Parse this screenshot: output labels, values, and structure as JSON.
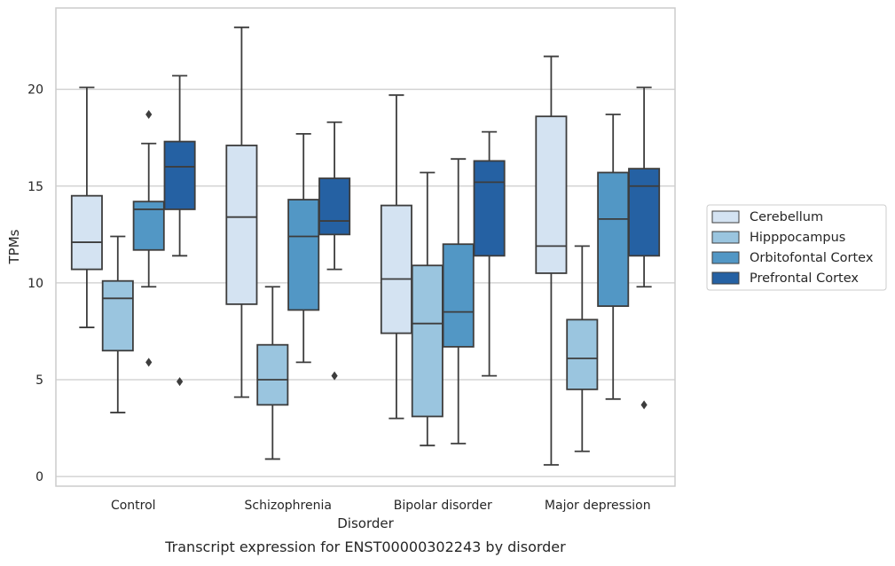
{
  "chart_data": {
    "type": "box",
    "xlabel": "Disorder",
    "ylabel": "TPMs",
    "caption": "Transcript expression for ENST00000302243 by disorder",
    "ylim": [
      -0.5,
      24.2
    ],
    "yticks": [
      0,
      5,
      10,
      15,
      20
    ],
    "grid": true,
    "legend_position": "right",
    "categories": [
      "Control",
      "Schizophrenia",
      "Bipolar disorder",
      "Major depression"
    ],
    "series": [
      {
        "name": "Cerebellum",
        "color": "#d4e3f2",
        "boxes": [
          {
            "whisker_low": 7.7,
            "q1": 10.7,
            "median": 12.1,
            "q3": 14.5,
            "whisker_high": 20.1,
            "outliers": []
          },
          {
            "whisker_low": 4.1,
            "q1": 8.9,
            "median": 13.4,
            "q3": 17.1,
            "whisker_high": 23.2,
            "outliers": []
          },
          {
            "whisker_low": 3.0,
            "q1": 7.4,
            "median": 10.2,
            "q3": 14.0,
            "whisker_high": 19.7,
            "outliers": []
          },
          {
            "whisker_low": 0.6,
            "q1": 10.5,
            "median": 11.9,
            "q3": 18.6,
            "whisker_high": 21.7,
            "outliers": []
          }
        ]
      },
      {
        "name": "Hipppocampus",
        "color": "#9ac5df",
        "boxes": [
          {
            "whisker_low": 3.3,
            "q1": 6.5,
            "median": 9.2,
            "q3": 10.1,
            "whisker_high": 12.4,
            "outliers": []
          },
          {
            "whisker_low": 0.9,
            "q1": 3.7,
            "median": 5.0,
            "q3": 6.8,
            "whisker_high": 9.8,
            "outliers": []
          },
          {
            "whisker_low": 1.6,
            "q1": 3.1,
            "median": 7.9,
            "q3": 10.9,
            "whisker_high": 15.7,
            "outliers": []
          },
          {
            "whisker_low": 1.3,
            "q1": 4.5,
            "median": 6.1,
            "q3": 8.1,
            "whisker_high": 11.9,
            "outliers": []
          }
        ]
      },
      {
        "name": "Orbitofontal Cortex",
        "color": "#5297c5",
        "boxes": [
          {
            "whisker_low": 9.8,
            "q1": 11.7,
            "median": 13.8,
            "q3": 14.2,
            "whisker_high": 17.2,
            "outliers": [
              18.7,
              5.9
            ]
          },
          {
            "whisker_low": 5.9,
            "q1": 8.6,
            "median": 12.4,
            "q3": 14.3,
            "whisker_high": 17.7,
            "outliers": []
          },
          {
            "whisker_low": 1.7,
            "q1": 6.7,
            "median": 8.5,
            "q3": 12.0,
            "whisker_high": 16.4,
            "outliers": []
          },
          {
            "whisker_low": 4.0,
            "q1": 8.8,
            "median": 13.3,
            "q3": 15.7,
            "whisker_high": 18.7,
            "outliers": []
          }
        ]
      },
      {
        "name": "Prefrontal Cortex",
        "color": "#2561a3",
        "boxes": [
          {
            "whisker_low": 11.4,
            "q1": 13.8,
            "median": 16.0,
            "q3": 17.3,
            "whisker_high": 20.7,
            "outliers": [
              4.9
            ]
          },
          {
            "whisker_low": 10.7,
            "q1": 12.5,
            "median": 13.2,
            "q3": 15.4,
            "whisker_high": 18.3,
            "outliers": [
              5.2
            ]
          },
          {
            "whisker_low": 5.2,
            "q1": 11.4,
            "median": 15.2,
            "q3": 16.3,
            "whisker_high": 17.8,
            "outliers": []
          },
          {
            "whisker_low": 9.8,
            "q1": 11.4,
            "median": 15.0,
            "q3": 15.9,
            "whisker_high": 20.1,
            "outliers": [
              3.7
            ]
          }
        ]
      }
    ]
  }
}
